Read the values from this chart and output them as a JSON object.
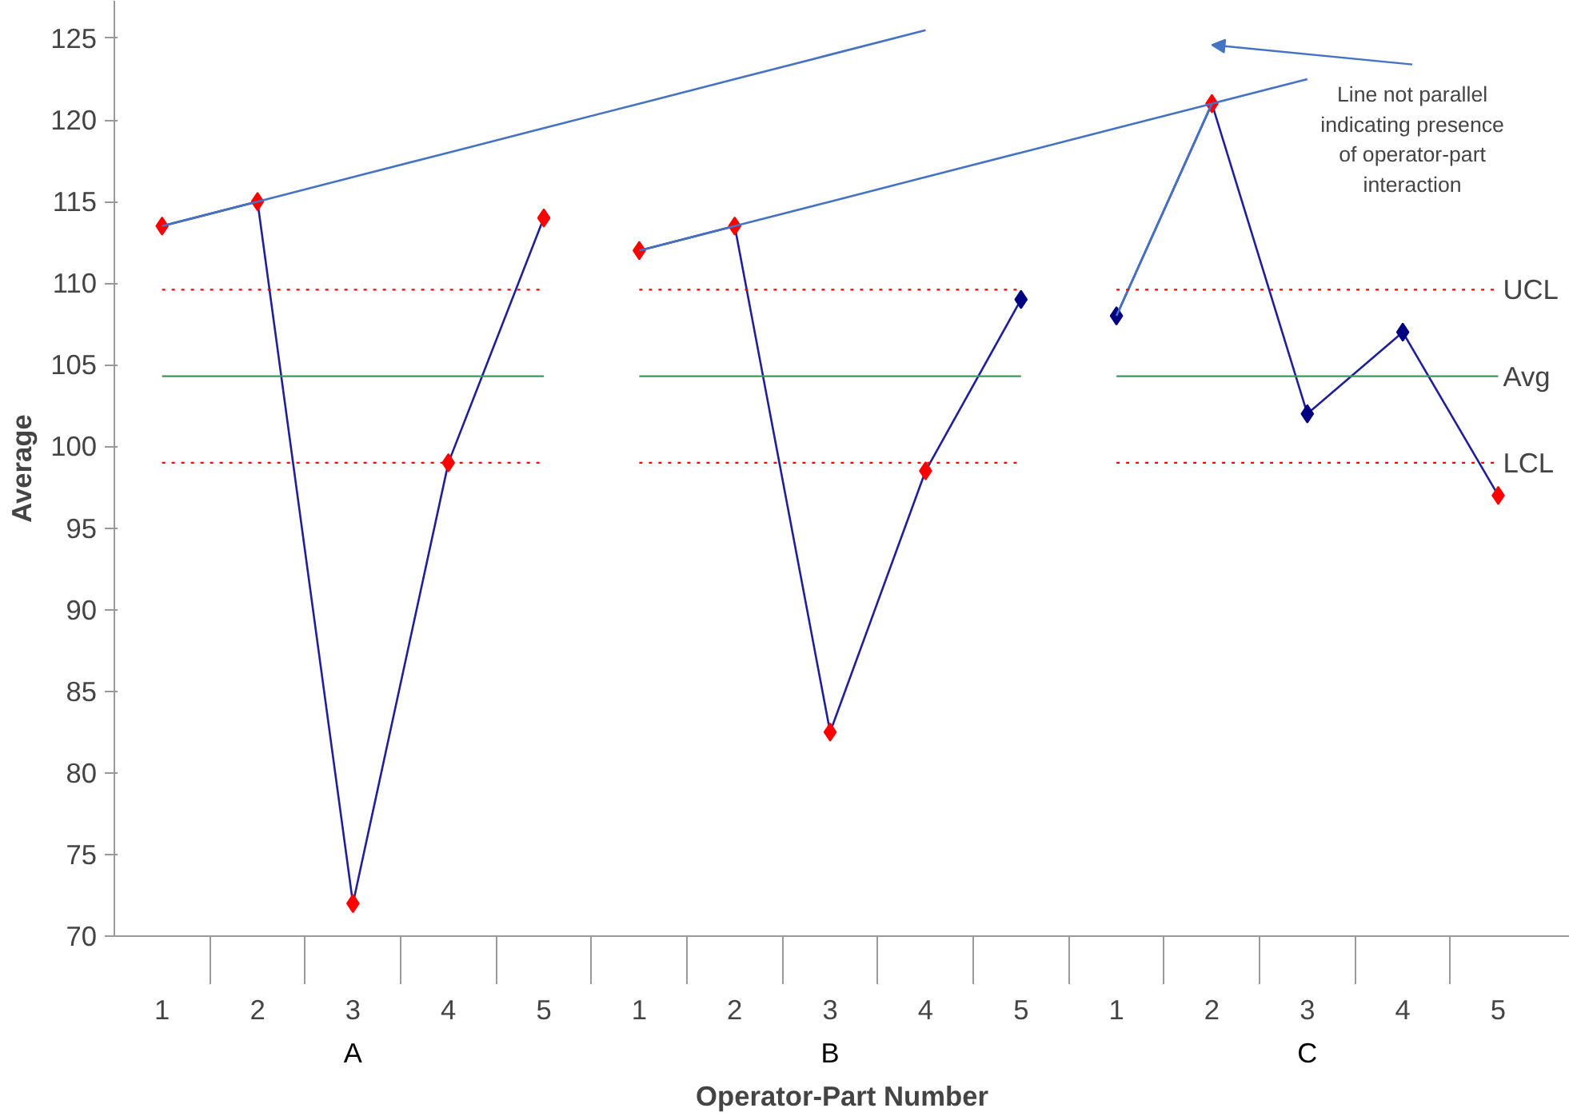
{
  "chart_data": {
    "type": "line",
    "xlabel": "Operator-Part Number",
    "ylabel": "Average",
    "categories": [
      "1",
      "2",
      "3",
      "4",
      "5",
      "1",
      "2",
      "3",
      "4",
      "5",
      "1",
      "2",
      "3",
      "4",
      "5"
    ],
    "series": [
      {
        "color": "#1f1f9a",
        "values": [
          113.5,
          115,
          72,
          99,
          114,
          null,
          null,
          null,
          null,
          null,
          null,
          null,
          null,
          null,
          null
        ],
        "colors": [
          "#ff0000",
          "#ff0000",
          "#ff0000",
          "#ff0000",
          "#ff0000",
          null,
          null,
          null,
          null,
          null,
          null,
          null,
          null,
          null,
          null
        ]
      },
      {
        "color": "#1f1f9a",
        "values": [
          null,
          null,
          null,
          null,
          null,
          112,
          113.5,
          82.5,
          98.5,
          109,
          null,
          null,
          null,
          null,
          null
        ],
        "colors": [
          null,
          null,
          null,
          null,
          null,
          "#ff0000",
          "#ff0000",
          "#ff0000",
          "#ff0000",
          "#000080",
          null,
          null,
          null,
          null,
          null
        ]
      },
      {
        "color": "#1f1f9a",
        "values": [
          null,
          null,
          null,
          null,
          null,
          null,
          null,
          null,
          null,
          null,
          108,
          121,
          102,
          107,
          97
        ],
        "colors": [
          null,
          null,
          null,
          null,
          null,
          null,
          null,
          null,
          null,
          null,
          "#000080",
          "#ff0000",
          "#000080",
          "#000080",
          "#ff0000"
        ]
      },
      {
        "type": "line",
        "marker": "none",
        "color": "#4472c4",
        "values": [
          113.5,
          115,
          116.5,
          118,
          119.5,
          121,
          122.5,
          124,
          125.5,
          null,
          null,
          null,
          null,
          null,
          null
        ]
      },
      {
        "type": "line",
        "marker": "none",
        "color": "#4472c4",
        "values": [
          null,
          null,
          null,
          null,
          null,
          112,
          113.5,
          115,
          116.5,
          118,
          119.5,
          121,
          122.5,
          null,
          null
        ]
      },
      {
        "type": "line",
        "marker": "none",
        "color": "#4472c4",
        "values": [
          null,
          null,
          null,
          null,
          null,
          null,
          null,
          null,
          null,
          null,
          108,
          121,
          null,
          null,
          null
        ]
      }
    ],
    "ylim": [
      70,
      127.3
    ],
    "yticks": [
      70,
      75,
      80,
      85,
      90,
      95,
      100,
      105,
      110,
      115,
      120,
      125
    ],
    "ref_lines": [
      {
        "axis": "y",
        "value": 109.6,
        "label": "UCL",
        "color": "#ff0000",
        "line_style": "dotted"
      },
      {
        "axis": "y",
        "value": 104.3,
        "label": "Avg",
        "color": "#3a9a5a",
        "line_style": "solid"
      },
      {
        "axis": "y",
        "value": 99,
        "label": "LCL",
        "color": "#ff0000",
        "line_style": "dotted"
      }
    ],
    "annotations": [
      "A",
      "B",
      "C",
      "Line not parallel\nindicating presence\nof operator-part\ninteraction"
    ],
    "marker": "diamond",
    "grid": false
  }
}
